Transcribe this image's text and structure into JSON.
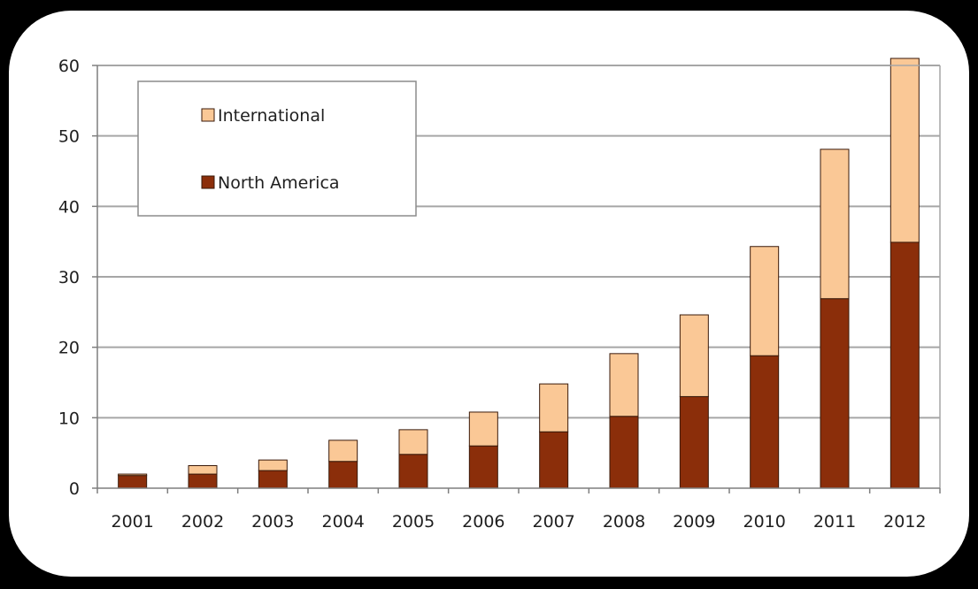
{
  "chart_data": {
    "type": "bar",
    "stacked": true,
    "categories": [
      "2001",
      "2002",
      "2003",
      "2004",
      "2005",
      "2006",
      "2007",
      "2008",
      "2009",
      "2010",
      "2011",
      "2012"
    ],
    "series": [
      {
        "name": "North America",
        "color": "#8B2E0A",
        "values": [
          1.8,
          2.0,
          2.5,
          3.8,
          4.8,
          6.0,
          8.0,
          10.2,
          13.0,
          18.8,
          26.9,
          34.9
        ]
      },
      {
        "name": "International",
        "color": "#FAC896",
        "values": [
          0.2,
          1.2,
          1.5,
          3.0,
          3.5,
          4.8,
          6.8,
          8.9,
          11.6,
          15.5,
          21.2,
          26.1
        ]
      }
    ],
    "ylim": [
      0,
      60
    ],
    "yticks": [
      0,
      10,
      20,
      30,
      40,
      50,
      60
    ],
    "grid": true,
    "legend_position": "top-left",
    "legend_order": [
      "International",
      "North America"
    ],
    "title": "",
    "xlabel": "",
    "ylabel": ""
  }
}
